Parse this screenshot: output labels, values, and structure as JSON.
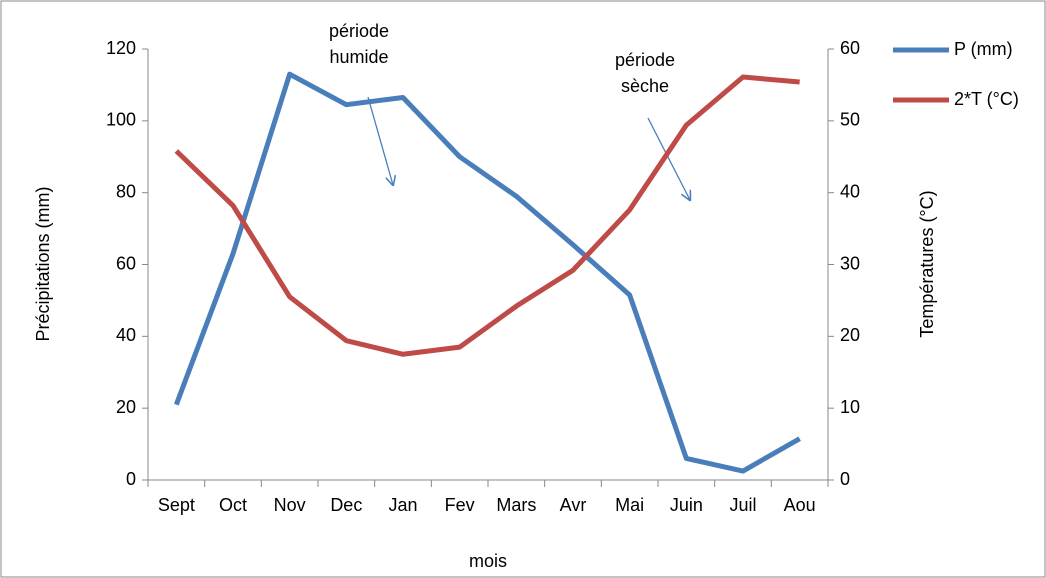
{
  "chart_data": {
    "type": "line",
    "categories": [
      "Sept",
      "Oct",
      "Nov",
      "Dec",
      "Jan",
      "Fev",
      "Mars",
      "Avr",
      "Mai",
      "Juin",
      "Juil",
      "Aou"
    ],
    "series": [
      {
        "name": "P (mm)",
        "color": "#4a7ebb",
        "values": [
          21,
          63,
          113,
          104.5,
          106.5,
          90,
          79,
          65.5,
          51.5,
          6,
          2.5,
          11.5
        ]
      },
      {
        "name": "2*T (°C)",
        "color": "#be4b48",
        "axis": "y2",
        "values": [
          45.8,
          38.2,
          25.5,
          19.4,
          17.5,
          18.5,
          24.2,
          29.2,
          37.6,
          49.4,
          56.1,
          55.4
        ]
      }
    ],
    "xlabel": "mois",
    "ylabel": "Précipitations (mm)",
    "y2label": "Températures (°C)",
    "ylim": [
      0,
      120
    ],
    "yticks": [
      0,
      20,
      40,
      60,
      80,
      100,
      120
    ],
    "y2lim": [
      0,
      60
    ],
    "y2ticks": [
      0,
      10,
      20,
      30,
      40,
      50,
      60
    ],
    "annotations": [
      "période humide",
      "période sèche"
    ],
    "legend": "right",
    "grid": false
  }
}
